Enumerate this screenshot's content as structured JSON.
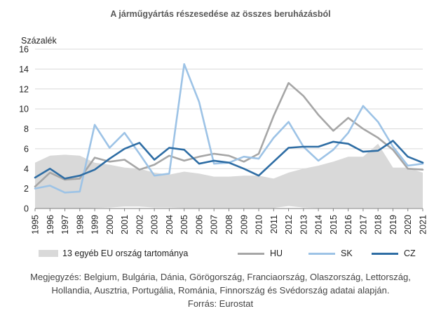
{
  "title": "A járműgyártás részesedése az összes beruházásból",
  "chart_data": {
    "type": "line",
    "unit_label": "Százalék",
    "ylim": [
      0,
      16
    ],
    "yticks": [
      "0",
      "2",
      "4",
      "6",
      "8",
      "10",
      "12",
      "14",
      "16"
    ],
    "x": [
      "1995",
      "1996",
      "1997",
      "1998",
      "1999",
      "2000",
      "2001",
      "2002",
      "2003",
      "2004",
      "2005",
      "2006",
      "2007",
      "2008",
      "2009",
      "2010",
      "2011",
      "2012",
      "2013",
      "2014",
      "2015",
      "2016",
      "2017",
      "2018",
      "2019",
      "2020",
      "2021"
    ],
    "grid": "horizontal",
    "legend_position": "bottom",
    "area": {
      "name": "13 egyéb EU ország tartománya",
      "color": "#d9d9d9",
      "upper": [
        4.6,
        5.3,
        5.4,
        5.3,
        4.6,
        4.4,
        4.1,
        4.0,
        3.6,
        3.4,
        3.7,
        3.5,
        3.2,
        3.2,
        3.3,
        3.3,
        3.0,
        3.6,
        4.0,
        4.3,
        4.7,
        5.2,
        5.2,
        6.5,
        4.1,
        4.1,
        3.6
      ],
      "lower": [
        0.0,
        0.0,
        0.0,
        0.0,
        0.05,
        0.1,
        0.2,
        0.2,
        0.1,
        0.1,
        0.05,
        0.05,
        0.05,
        0.05,
        0.05,
        0.05,
        0.05,
        0.25,
        0.1,
        0.05,
        0.05,
        0.05,
        0.05,
        0.05,
        0.05,
        0.05,
        0.05
      ]
    },
    "series": [
      {
        "name": "HU",
        "color": "#a6a6a6",
        "values": [
          2.2,
          3.6,
          2.9,
          3.0,
          5.1,
          4.7,
          4.9,
          3.9,
          4.4,
          5.3,
          4.8,
          5.2,
          5.5,
          5.3,
          4.7,
          5.5,
          9.3,
          12.6,
          11.3,
          9.4,
          7.8,
          9.1,
          8.0,
          7.1,
          5.9,
          4.0,
          3.9
        ]
      },
      {
        "name": "SK",
        "color": "#9dc3e6",
        "values": [
          2.0,
          2.3,
          1.6,
          1.7,
          8.4,
          6.1,
          7.6,
          5.5,
          3.3,
          3.5,
          14.5,
          10.7,
          4.5,
          4.6,
          5.2,
          5.0,
          7.1,
          8.7,
          6.2,
          4.8,
          5.9,
          7.6,
          10.3,
          8.7,
          6.2,
          4.3,
          4.5
        ]
      },
      {
        "name": "CZ",
        "color": "#2e6da4",
        "values": [
          3.1,
          4.0,
          3.0,
          3.3,
          3.9,
          5.0,
          6.0,
          6.6,
          4.9,
          6.1,
          5.9,
          4.5,
          4.8,
          4.6,
          4.0,
          3.3,
          4.7,
          6.1,
          6.2,
          6.2,
          6.7,
          6.5,
          5.7,
          5.8,
          6.8,
          5.2,
          4.6
        ]
      }
    ]
  },
  "notes": [
    "Megjegyzés: Belgium, Bulgária, Dánia, Görögország, Franciaország, Olaszország, Lettország,",
    "Hollandia, Ausztria, Portugália, Románia, Finnország és Svédország adatai alapján.",
    "Forrás: Eurostat"
  ]
}
